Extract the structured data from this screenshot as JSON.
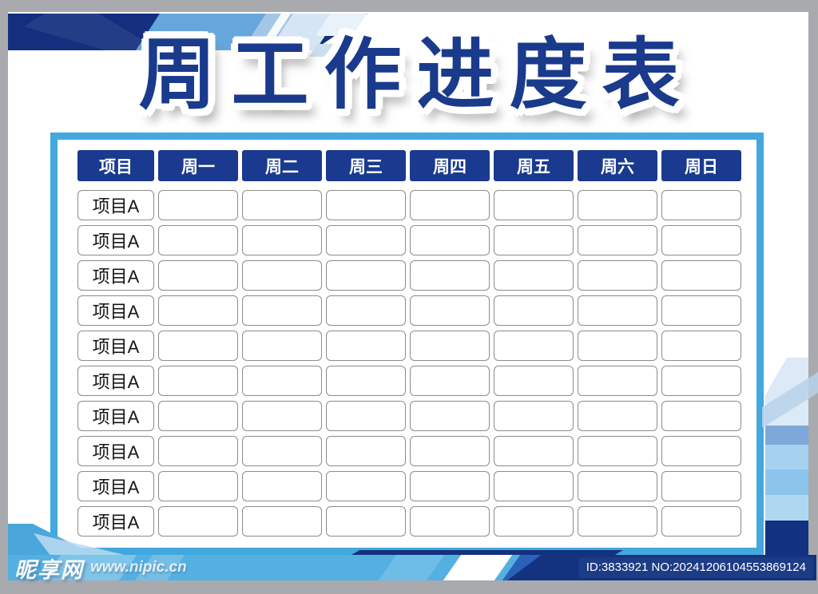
{
  "page": {
    "title": "周工作进度表"
  },
  "table": {
    "headers": [
      "项目",
      "周一",
      "周二",
      "周三",
      "周四",
      "周五",
      "周六",
      "周日"
    ],
    "rows": [
      {
        "label": "项目A",
        "cells": [
          "",
          "",
          "",
          "",
          "",
          "",
          ""
        ]
      },
      {
        "label": "项目A",
        "cells": [
          "",
          "",
          "",
          "",
          "",
          "",
          ""
        ]
      },
      {
        "label": "项目A",
        "cells": [
          "",
          "",
          "",
          "",
          "",
          "",
          ""
        ]
      },
      {
        "label": "项目A",
        "cells": [
          "",
          "",
          "",
          "",
          "",
          "",
          ""
        ]
      },
      {
        "label": "项目A",
        "cells": [
          "",
          "",
          "",
          "",
          "",
          "",
          ""
        ]
      },
      {
        "label": "项目A",
        "cells": [
          "",
          "",
          "",
          "",
          "",
          "",
          ""
        ]
      },
      {
        "label": "项目A",
        "cells": [
          "",
          "",
          "",
          "",
          "",
          "",
          ""
        ]
      },
      {
        "label": "项目A",
        "cells": [
          "",
          "",
          "",
          "",
          "",
          "",
          ""
        ]
      },
      {
        "label": "项目A",
        "cells": [
          "",
          "",
          "",
          "",
          "",
          "",
          ""
        ]
      },
      {
        "label": "项目A",
        "cells": [
          "",
          "",
          "",
          "",
          "",
          "",
          ""
        ]
      }
    ]
  },
  "footer": {
    "site_name": "昵享网",
    "site_url": "www.nipic.cn",
    "id_text": "ID:3833921 NO:20241206104553869124"
  },
  "colors": {
    "title_navy": "#1a3a8c",
    "header_navy": "#1a3a8f",
    "frame_blue": "#42a8dd",
    "banner_navy": "#142f7e",
    "bar_blue": "#55b0e2",
    "bar_navy": "#13327f",
    "surround_gray": "#a8aaad"
  }
}
